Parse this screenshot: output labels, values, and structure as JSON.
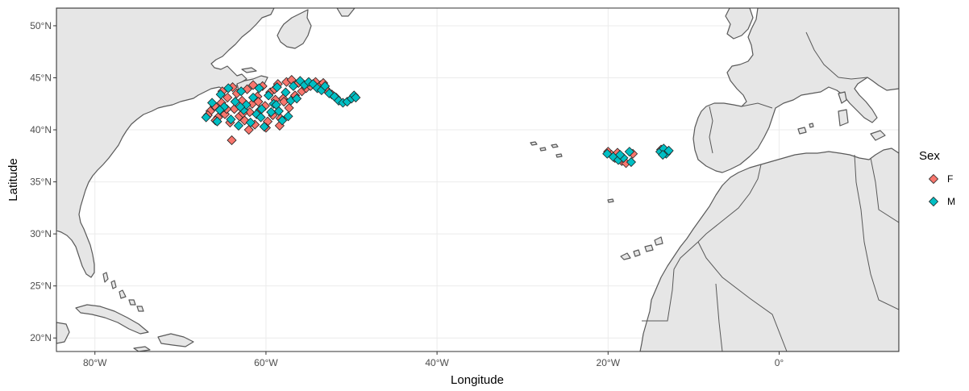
{
  "chart_data": {
    "type": "scatter",
    "xlabel": "Longitude",
    "ylabel": "Latitude",
    "xlim": [
      -84.5,
      14.0
    ],
    "ylim": [
      18.7,
      51.7
    ],
    "x_ticks": [
      {
        "value": -80,
        "label": "80°W"
      },
      {
        "value": -60,
        "label": "60°W"
      },
      {
        "value": -40,
        "label": "40°W"
      },
      {
        "value": -20,
        "label": "20°W"
      },
      {
        "value": 0,
        "label": "0°"
      }
    ],
    "y_ticks": [
      {
        "value": 20,
        "label": "20°N"
      },
      {
        "value": 25,
        "label": "25°N"
      },
      {
        "value": 30,
        "label": "30°N"
      },
      {
        "value": 35,
        "label": "35°N"
      },
      {
        "value": 40,
        "label": "40°N"
      },
      {
        "value": 45,
        "label": "45°N"
      },
      {
        "value": 50,
        "label": "50°N"
      }
    ],
    "grid": true,
    "legend": {
      "title": "Sex",
      "position": "right"
    },
    "series": [
      {
        "name": "F",
        "color": "#F8766D",
        "marker": "diamond",
        "points": [
          [
            -66.5,
            41.8
          ],
          [
            -66.0,
            42.3
          ],
          [
            -65.6,
            41.2
          ],
          [
            -65.2,
            42.6
          ],
          [
            -64.8,
            41.5
          ],
          [
            -64.5,
            43.1
          ],
          [
            -64.2,
            40.7
          ],
          [
            -64.0,
            39.0
          ],
          [
            -63.7,
            42.0
          ],
          [
            -63.4,
            43.5
          ],
          [
            -63.1,
            41.3
          ],
          [
            -62.8,
            42.8
          ],
          [
            -62.5,
            40.9
          ],
          [
            -62.2,
            43.9
          ],
          [
            -61.9,
            41.7
          ],
          [
            -61.6,
            42.5
          ],
          [
            -61.3,
            40.5
          ],
          [
            -61.0,
            43.2
          ],
          [
            -60.7,
            41.9
          ],
          [
            -60.4,
            44.2
          ],
          [
            -60.1,
            42.3
          ],
          [
            -59.8,
            40.8
          ],
          [
            -59.5,
            43.6
          ],
          [
            -59.2,
            41.4
          ],
          [
            -58.9,
            42.9
          ],
          [
            -58.6,
            44.4
          ],
          [
            -58.3,
            41.1
          ],
          [
            -58.0,
            43.0
          ],
          [
            -57.6,
            44.6
          ],
          [
            -57.3,
            42.1
          ],
          [
            -57.0,
            44.8
          ],
          [
            -56.6,
            43.3
          ],
          [
            -56.2,
            44.5
          ],
          [
            -55.8,
            43.7
          ],
          [
            -55.3,
            44.0
          ],
          [
            -65.9,
            40.9
          ],
          [
            -65.1,
            43.7
          ],
          [
            -63.9,
            44.1
          ],
          [
            -62.0,
            40.0
          ],
          [
            -60.0,
            40.2
          ],
          [
            -58.4,
            40.4
          ],
          [
            -61.5,
            44.3
          ],
          [
            -54.2,
            44.6
          ],
          [
            -53.6,
            44.3
          ],
          [
            -53.0,
            43.9
          ],
          [
            -52.3,
            43.4
          ],
          [
            -51.8,
            43.1
          ],
          [
            -54.8,
            44.2
          ],
          [
            -53.3,
            44.5
          ],
          [
            -52.8,
            43.7
          ],
          [
            -66.8,
            41.4
          ],
          [
            -64.6,
            42.0
          ],
          [
            -62.7,
            41.6
          ],
          [
            -60.9,
            42.7
          ],
          [
            -59.0,
            43.9
          ],
          [
            -57.9,
            42.7
          ],
          [
            -20.0,
            37.9
          ],
          [
            -19.6,
            37.6
          ],
          [
            -19.2,
            37.3
          ],
          [
            -18.4,
            37.0
          ],
          [
            -17.9,
            36.8
          ],
          [
            -17.1,
            37.7
          ],
          [
            -18.9,
            37.8
          ],
          [
            -13.8,
            38.1
          ],
          [
            -13.3,
            37.8
          ],
          [
            -13.0,
            37.9
          ]
        ]
      },
      {
        "name": "M",
        "color": "#00BFC4",
        "marker": "diamond",
        "points": [
          [
            -67.0,
            41.2
          ],
          [
            -66.3,
            42.6
          ],
          [
            -65.7,
            40.8
          ],
          [
            -65.3,
            43.4
          ],
          [
            -64.9,
            42.2
          ],
          [
            -64.4,
            44.0
          ],
          [
            -64.1,
            41.0
          ],
          [
            -63.6,
            42.7
          ],
          [
            -63.2,
            40.4
          ],
          [
            -62.9,
            43.7
          ],
          [
            -62.6,
            41.9
          ],
          [
            -62.3,
            42.4
          ],
          [
            -61.8,
            40.7
          ],
          [
            -61.5,
            43.1
          ],
          [
            -61.1,
            41.5
          ],
          [
            -60.8,
            44.0
          ],
          [
            -60.5,
            42.0
          ],
          [
            -60.2,
            40.3
          ],
          [
            -59.7,
            43.3
          ],
          [
            -59.4,
            41.7
          ],
          [
            -59.1,
            42.5
          ],
          [
            -58.7,
            44.1
          ],
          [
            -58.5,
            41.8
          ],
          [
            -58.1,
            40.9
          ],
          [
            -57.7,
            43.6
          ],
          [
            -57.4,
            41.3
          ],
          [
            -57.1,
            42.8
          ],
          [
            -56.8,
            44.2
          ],
          [
            -56.4,
            43.0
          ],
          [
            -56.0,
            44.7
          ],
          [
            -55.5,
            44.3
          ],
          [
            -55.0,
            44.6
          ],
          [
            -54.5,
            44.4
          ],
          [
            -54.0,
            44.0
          ],
          [
            -53.5,
            43.8
          ],
          [
            -53.1,
            44.2
          ],
          [
            -52.6,
            43.5
          ],
          [
            -52.0,
            43.2
          ],
          [
            -51.5,
            42.8
          ],
          [
            -51.0,
            42.6
          ],
          [
            -50.5,
            42.7
          ],
          [
            -50.0,
            43.0
          ],
          [
            -49.7,
            43.3
          ],
          [
            -49.5,
            43.1
          ],
          [
            -65.4,
            41.9
          ],
          [
            -63.0,
            42.2
          ],
          [
            -60.6,
            41.2
          ],
          [
            -58.8,
            42.4
          ],
          [
            -20.1,
            37.7
          ],
          [
            -19.4,
            37.4
          ],
          [
            -18.8,
            37.1
          ],
          [
            -18.2,
            37.3
          ],
          [
            -17.5,
            37.9
          ],
          [
            -17.3,
            36.9
          ],
          [
            -18.6,
            37.6
          ],
          [
            -13.9,
            37.9
          ],
          [
            -13.5,
            38.2
          ],
          [
            -13.2,
            37.7
          ],
          [
            -12.9,
            38.0
          ],
          [
            -13.6,
            37.6
          ]
        ]
      }
    ]
  }
}
